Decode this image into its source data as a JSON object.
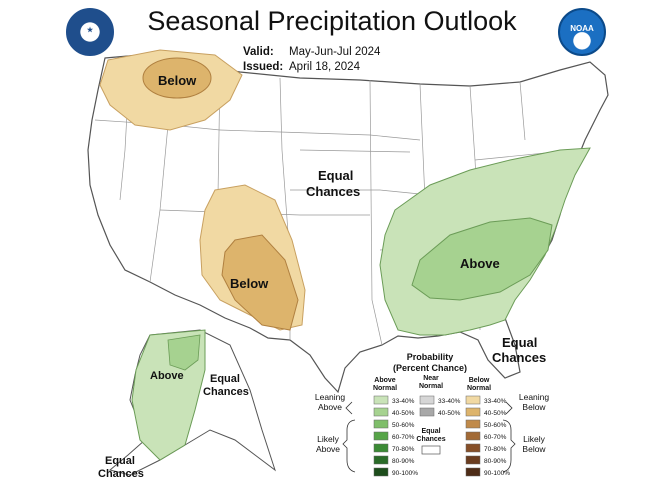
{
  "title": "Seasonal Precipitation Outlook",
  "valid_label": "Valid:",
  "valid_value": "May-Jun-Jul 2024",
  "issued_label": "Issued:",
  "issued_value": "April 18, 2024",
  "logos": {
    "left": "doc-seal",
    "right": "noaa-logo",
    "noaa_text": "NOAA"
  },
  "regions": {
    "pnw_below": "Below",
    "sw_below": "Below",
    "east_above": "Above",
    "equal_center_1": "Equal",
    "equal_center_2": "Chances",
    "equal_florida_1": "Equal",
    "equal_florida_2": "Chances",
    "alaska_above": "Above",
    "alaska_equal_1": "Equal",
    "alaska_equal_2": "Chances",
    "alaska_equal_sw_1": "Equal",
    "alaska_equal_sw_2": "Chances"
  },
  "legend": {
    "title_1": "Probability",
    "title_2": "(Percent Chance)",
    "col_above_1": "Above",
    "col_above_2": "Normal",
    "col_near_1": "Near",
    "col_near_2": "Normal",
    "col_below_1": "Below",
    "col_below_2": "Normal",
    "leaning_above_1": "Leaning",
    "leaning_above_2": "Above",
    "likely_above_1": "Likely",
    "likely_above_2": "Above",
    "leaning_below_1": "Leaning",
    "leaning_below_2": "Below",
    "likely_below_1": "Likely",
    "likely_below_2": "Below",
    "equal_1": "Equal",
    "equal_2": "Chances",
    "above_rows": [
      {
        "label": "33-40%",
        "color": "#c9e3b8"
      },
      {
        "label": "40-50%",
        "color": "#a6d290"
      },
      {
        "label": "50-60%",
        "color": "#7fbe6a"
      },
      {
        "label": "60-70%",
        "color": "#56a448"
      },
      {
        "label": "70-80%",
        "color": "#3b8a35"
      },
      {
        "label": "80-90%",
        "color": "#2a6b28"
      },
      {
        "label": "90-100%",
        "color": "#1d4d1c"
      }
    ],
    "near_rows": [
      {
        "label": "33-40%",
        "color": "#d6d6d6"
      },
      {
        "label": "40-50%",
        "color": "#a8a8a8"
      }
    ],
    "below_rows": [
      {
        "label": "33-40%",
        "color": "#f1d9a3"
      },
      {
        "label": "40-50%",
        "color": "#ddb46c"
      },
      {
        "label": "50-60%",
        "color": "#c08a4a"
      },
      {
        "label": "60-70%",
        "color": "#a26a36"
      },
      {
        "label": "70-80%",
        "color": "#864f28"
      },
      {
        "label": "80-90%",
        "color": "#6a3c1f"
      },
      {
        "label": "90-100%",
        "color": "#4e2c17"
      }
    ]
  }
}
